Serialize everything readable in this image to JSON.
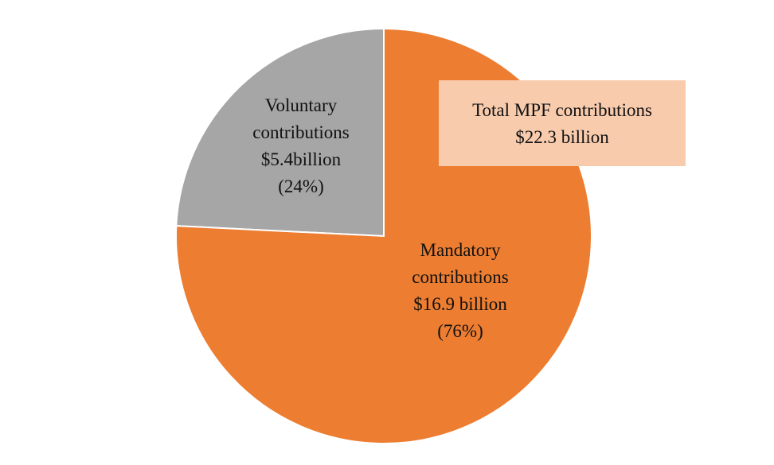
{
  "chart_data": {
    "type": "pie",
    "title": "",
    "slices": [
      {
        "name": "Voluntary contributions",
        "value": 5.4,
        "percent": 24,
        "color": "#a6a6a6",
        "label_lines": [
          "Voluntary",
          "contributions",
          "$5.4billion",
          "(24%)"
        ]
      },
      {
        "name": "Mandatory contributions",
        "value": 16.9,
        "percent": 76,
        "color": "#ed7d31",
        "label_lines": [
          "Mandatory",
          "contributions",
          "$16.9 billion",
          "(76%)"
        ]
      }
    ],
    "total": {
      "value": 22.3,
      "lines": [
        "Total MPF contributions",
        "$22.3 billion"
      ],
      "box_color": "#f8cbad"
    }
  }
}
